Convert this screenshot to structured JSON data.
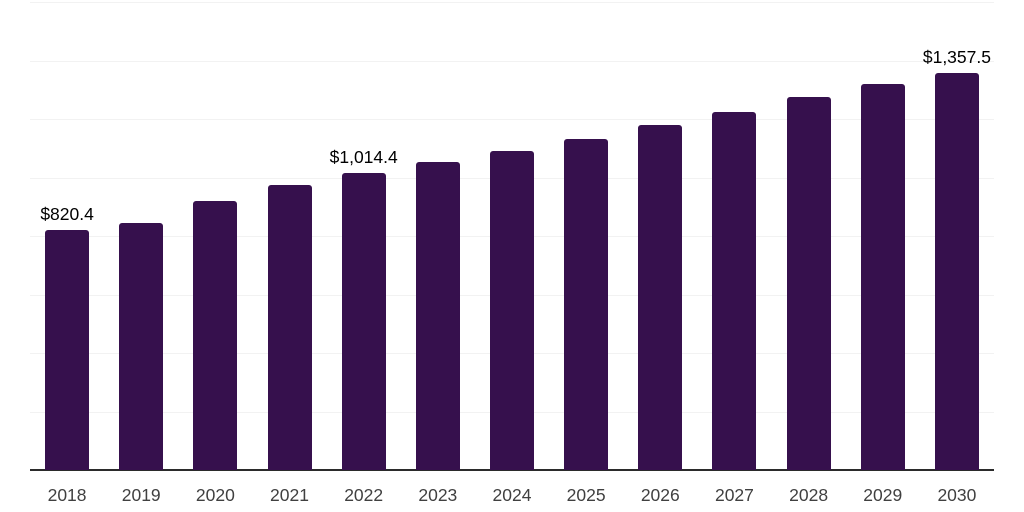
{
  "chart_data": {
    "type": "bar",
    "title": "",
    "xlabel": "",
    "ylabel": "",
    "categories": [
      "2018",
      "2019",
      "2020",
      "2021",
      "2022",
      "2023",
      "2024",
      "2025",
      "2026",
      "2027",
      "2028",
      "2029",
      "2030"
    ],
    "values": [
      820.4,
      845,
      920,
      975,
      1014.4,
      1053,
      1091,
      1132,
      1180,
      1225,
      1274,
      1320,
      1357.5
    ],
    "data_labels": [
      {
        "index": 0,
        "category": "2018",
        "text": "$820.4"
      },
      {
        "index": 4,
        "category": "2022",
        "text": "$1,014.4"
      },
      {
        "index": 12,
        "category": "2030",
        "text": "$1,357.5"
      }
    ],
    "ylim": [
      0,
      1600
    ],
    "ytick_step": 200,
    "ytick_labels_visible": false,
    "grid": "horizontal",
    "legend": "none",
    "colors": {
      "bar": "#36104D",
      "gridline": "#F2F2F2",
      "axis_line": "#2B2B2B",
      "category_label": "#404040",
      "value_label": "#000000",
      "background": "#FFFFFF"
    }
  }
}
